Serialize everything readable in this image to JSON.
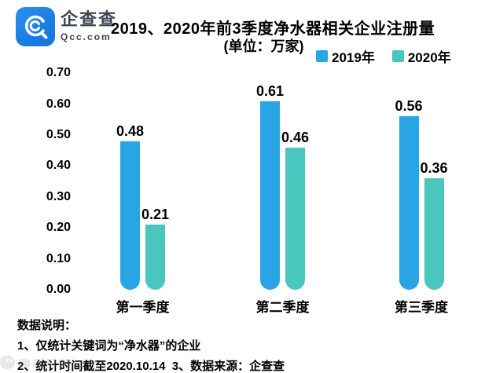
{
  "brand": {
    "name": "企查查",
    "domain": "Qcc.com"
  },
  "header": {
    "title": "2019、2020年前3季度净水器相关企业注册量",
    "subtitle": "(单位：万家)"
  },
  "legend": [
    {
      "label": "2019年",
      "color": "#29a4e4"
    },
    {
      "label": "2020年",
      "color": "#49c6bd"
    }
  ],
  "chart_data": {
    "type": "bar",
    "title": "2019、2020年前3季度净水器相关企业注册量",
    "unit_label": "(单位：万家)",
    "categories": [
      "第一季度",
      "第二季度",
      "第三季度"
    ],
    "series": [
      {
        "name": "2019年",
        "color": "#29a4e4",
        "values": [
          0.48,
          0.61,
          0.56
        ]
      },
      {
        "name": "2020年",
        "color": "#49c6bd",
        "values": [
          0.21,
          0.46,
          0.36
        ]
      }
    ],
    "value_labels": [
      [
        "0.48",
        "0.61",
        "0.56"
      ],
      [
        "0.21",
        "0.46",
        "0.36"
      ]
    ],
    "ylim": [
      0,
      0.7
    ],
    "yticks": [
      "0.70",
      "0.60",
      "0.50",
      "0.40",
      "0.30",
      "0.20",
      "0.10",
      "0.00"
    ],
    "grid": false,
    "axis_line": false,
    "legend_position": "top-right"
  },
  "footer": {
    "heading": "数据说明：",
    "notes": [
      "1、仅统计关键词为“净水器”的企业",
      "2、统计时间截至2020.10.14  3、数据来源：企查查"
    ]
  },
  "colors": {
    "bar_2019": "#29a4e4",
    "bar_2020": "#49c6bd",
    "logo_blue": "#1e82e8",
    "text": "#000000"
  }
}
